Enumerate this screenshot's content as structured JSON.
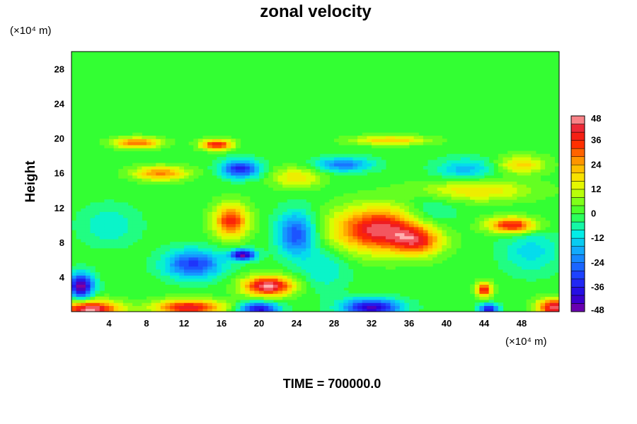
{
  "chart_data": {
    "type": "heatmap",
    "title": "zonal velocity",
    "ylabel": "Height",
    "x_unit_label": "(×10⁴ m)",
    "y_unit_label": "(×10⁴ m)",
    "footer": "TIME = 700000.0",
    "xlim": [
      0,
      52
    ],
    "ylim": [
      0,
      30
    ],
    "x_ticks": [
      4,
      8,
      12,
      16,
      20,
      24,
      28,
      32,
      36,
      40,
      44,
      48
    ],
    "y_ticks": [
      4,
      8,
      12,
      16,
      20,
      24,
      28
    ],
    "colorbar": {
      "min": -48,
      "max": 48,
      "ticks": [
        48,
        36,
        24,
        12,
        0,
        -12,
        -24,
        -36,
        -48
      ]
    },
    "features": [
      {
        "x": 33,
        "y": 9.5,
        "rx": 5,
        "ry": 2.5,
        "value": 45
      },
      {
        "x": 37,
        "y": 8.2,
        "rx": 2.5,
        "ry": 1.6,
        "value": 28
      },
      {
        "x": 21,
        "y": 3,
        "rx": 2.6,
        "ry": 1.1,
        "value": 48
      },
      {
        "x": 2,
        "y": 0.3,
        "rx": 3,
        "ry": 1.0,
        "value": 48
      },
      {
        "x": 12.5,
        "y": 0.5,
        "rx": 3.5,
        "ry": 0.9,
        "value": 42
      },
      {
        "x": 51.5,
        "y": 0.5,
        "rx": 1.8,
        "ry": 1.0,
        "value": 45
      },
      {
        "x": 17,
        "y": 10.5,
        "rx": 1.8,
        "ry": 1.9,
        "value": 36
      },
      {
        "x": 15.5,
        "y": 19.3,
        "rx": 1.6,
        "ry": 0.6,
        "value": 40
      },
      {
        "x": 9.5,
        "y": 16,
        "rx": 2.8,
        "ry": 0.8,
        "value": 28
      },
      {
        "x": 7,
        "y": 19.5,
        "rx": 2.5,
        "ry": 0.6,
        "value": 30
      },
      {
        "x": 47,
        "y": 10,
        "rx": 2.5,
        "ry": 0.9,
        "value": 40
      },
      {
        "x": 44,
        "y": 2.6,
        "rx": 0.8,
        "ry": 0.8,
        "value": 40
      },
      {
        "x": 43,
        "y": 14,
        "rx": 6,
        "ry": 1.2,
        "value": 18
      },
      {
        "x": 24,
        "y": 15.5,
        "rx": 2.5,
        "ry": 1.2,
        "value": 18
      },
      {
        "x": 34,
        "y": 19.8,
        "rx": 4,
        "ry": 0.5,
        "value": 22
      },
      {
        "x": 1,
        "y": 3,
        "rx": 1.3,
        "ry": 1.4,
        "value": -48
      },
      {
        "x": 13,
        "y": 5.5,
        "rx": 3,
        "ry": 1.6,
        "value": -32
      },
      {
        "x": 18.3,
        "y": 6.6,
        "rx": 1.3,
        "ry": 0.6,
        "value": -48
      },
      {
        "x": 24,
        "y": 9,
        "rx": 2,
        "ry": 2.5,
        "value": -30
      },
      {
        "x": 18,
        "y": 16.5,
        "rx": 2,
        "ry": 1.0,
        "value": -36
      },
      {
        "x": 29,
        "y": 17,
        "rx": 3,
        "ry": 0.8,
        "value": -24
      },
      {
        "x": 32,
        "y": 0.5,
        "rx": 3,
        "ry": 1.0,
        "value": -44
      },
      {
        "x": 20,
        "y": 0.3,
        "rx": 2,
        "ry": 0.8,
        "value": -40
      },
      {
        "x": 44.5,
        "y": 0.3,
        "rx": 1.0,
        "ry": 0.6,
        "value": -40
      },
      {
        "x": 38,
        "y": 11,
        "rx": 3,
        "ry": 2.5,
        "value": -12
      },
      {
        "x": 49,
        "y": 7,
        "rx": 3,
        "ry": 2.5,
        "value": -12
      },
      {
        "x": 4,
        "y": 10,
        "rx": 3,
        "ry": 2.2,
        "value": -10
      },
      {
        "x": 42,
        "y": 16.5,
        "rx": 3,
        "ry": 1.2,
        "value": -16
      },
      {
        "x": 27,
        "y": 5,
        "rx": 2.5,
        "ry": 2.5,
        "value": -10
      },
      {
        "x": 48,
        "y": 17,
        "rx": 2.5,
        "ry": 1.0,
        "value": 20
      }
    ]
  }
}
